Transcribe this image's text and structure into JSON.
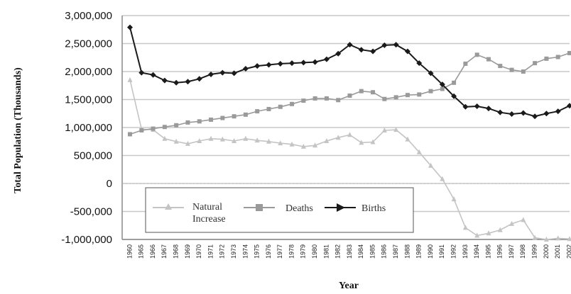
{
  "chart_data": {
    "type": "line",
    "title": "",
    "xlabel": "Year",
    "ylabel": "Total Population (Thousands)",
    "ylim": [
      -1000000,
      3000000
    ],
    "yticks": [
      3000000,
      2500000,
      2000000,
      1500000,
      1000000,
      500000,
      0,
      -500000,
      -1000000
    ],
    "ytick_labels": [
      "3,000,000",
      "2,500,000",
      "2,000,000",
      "1,500,000",
      "1,000,000",
      "500,000",
      "0",
      "-500,000",
      "-1,000,000"
    ],
    "categories": [
      "1960",
      "1965",
      "1966",
      "1967",
      "1968",
      "1969",
      "1970",
      "1971",
      "1972",
      "1973",
      "1974",
      "1975",
      "1976",
      "1977",
      "1978",
      "1979",
      "1980",
      "1981",
      "1982",
      "1983",
      "1984",
      "1985",
      "1986",
      "1987",
      "1988",
      "1989",
      "1990",
      "1991",
      "1992",
      "1993",
      "1994",
      "1995",
      "1996",
      "1997",
      "1998",
      "1999",
      "2000",
      "2001",
      "2002"
    ],
    "grid": true,
    "legend_position": "lower-left",
    "series": [
      {
        "name": "Natural Increase",
        "color": "#c4c4c4",
        "marker": "triangle",
        "values": [
          1850000,
          970000,
          960000,
          800000,
          750000,
          710000,
          760000,
          800000,
          790000,
          760000,
          800000,
          770000,
          750000,
          720000,
          700000,
          660000,
          680000,
          760000,
          820000,
          870000,
          730000,
          740000,
          950000,
          960000,
          790000,
          560000,
          320000,
          80000,
          -280000,
          -790000,
          -930000,
          -890000,
          -830000,
          -720000,
          -650000,
          -970000,
          -1000000,
          -980000,
          -990000
        ]
      },
      {
        "name": "Deaths",
        "color": "#9a9a9a",
        "marker": "square",
        "values": [
          880000,
          950000,
          980000,
          1010000,
          1040000,
          1090000,
          1110000,
          1140000,
          1170000,
          1200000,
          1230000,
          1290000,
          1330000,
          1370000,
          1420000,
          1480000,
          1520000,
          1520000,
          1490000,
          1570000,
          1650000,
          1630000,
          1510000,
          1540000,
          1580000,
          1590000,
          1650000,
          1690000,
          1800000,
          2140000,
          2300000,
          2220000,
          2100000,
          2030000,
          2000000,
          2150000,
          2230000,
          2260000,
          2330000
        ]
      },
      {
        "name": "Births",
        "color": "#1a1a1a",
        "marker": "diamond",
        "values": [
          2790000,
          1980000,
          1940000,
          1840000,
          1800000,
          1820000,
          1870000,
          1950000,
          1980000,
          1970000,
          2050000,
          2100000,
          2120000,
          2140000,
          2150000,
          2160000,
          2170000,
          2220000,
          2320000,
          2480000,
          2390000,
          2360000,
          2470000,
          2480000,
          2360000,
          2150000,
          1970000,
          1770000,
          1560000,
          1370000,
          1380000,
          1340000,
          1270000,
          1240000,
          1260000,
          1200000,
          1250000,
          1290000,
          1390000
        ]
      }
    ]
  }
}
